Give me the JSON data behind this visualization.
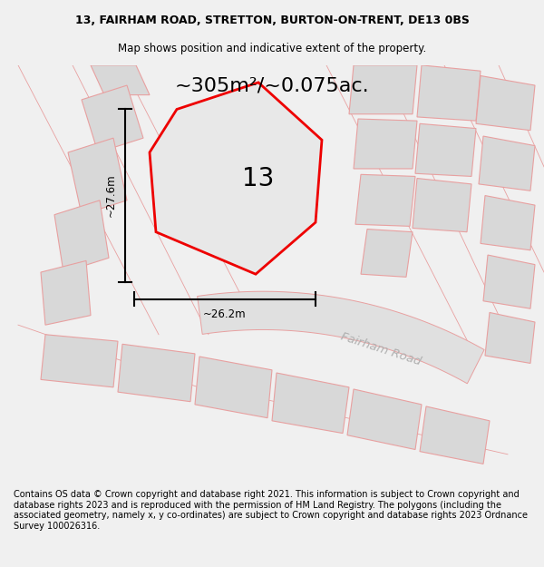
{
  "title_line1": "13, FAIRHAM ROAD, STRETTON, BURTON-ON-TRENT, DE13 0BS",
  "title_line2": "Map shows position and indicative extent of the property.",
  "area_text": "~305m²/~0.075ac.",
  "property_number": "13",
  "width_label": "~26.2m",
  "height_label": "~27.6m",
  "road_label": "Fairham Road",
  "footer_text": "Contains OS data © Crown copyright and database right 2021. This information is subject to Crown copyright and database rights 2023 and is reproduced with the permission of HM Land Registry. The polygons (including the associated geometry, namely x, y co-ordinates) are subject to Crown copyright and database rights 2023 Ordnance Survey 100026316.",
  "bg_color": "#f0f0f0",
  "map_bg_color": "#f0f0f0",
  "plot_color_red": "#ee0000",
  "plot_color_pink": "#e8a0a0",
  "plot_fill_gray": "#d8d8d8",
  "road_fill": "#e8e8e8",
  "footer_bg": "#ffffff",
  "title_bg": "#ffffff",
  "title_fontsize": 9.0,
  "subtitle_fontsize": 8.5,
  "area_fontsize": 16,
  "label_fontsize": 8.5,
  "property_fontsize": 20,
  "footer_fontsize": 7.0,
  "road_label_color": "#b0b0b0",
  "road_label_fontsize": 9.5
}
